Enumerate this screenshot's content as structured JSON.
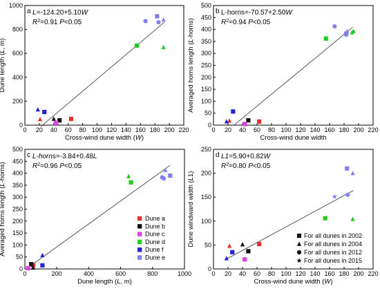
{
  "chart_data": [
    {
      "id": "a",
      "type": "scatter",
      "letter": "a",
      "xlabel": "Cross-wind dune width  (W)",
      "ylabel": "Dune length (L, m)",
      "xlim": [
        0,
        220
      ],
      "ylim": [
        0,
        1000
      ],
      "xticks": [
        "0",
        "20",
        "40",
        "60",
        "80",
        "100",
        "120",
        "140",
        "160",
        "180",
        "200",
        "220"
      ],
      "yticks": [
        "0",
        "200",
        "400",
        "600",
        "800",
        "1000"
      ],
      "x_tick_values": [
        0,
        20,
        40,
        60,
        80,
        100,
        120,
        140,
        160,
        180,
        200,
        220
      ],
      "y_tick_values": [
        0,
        200,
        400,
        600,
        800,
        1000
      ],
      "equation": "L=-124.20+5.10W",
      "stats": "R²=0.91 P<0.05",
      "fit": {
        "intercept": -124.2,
        "slope": 5.1,
        "x_range": [
          22,
          193
        ]
      },
      "points": [
        {
          "dune": "a",
          "year": "2002",
          "x": 64,
          "y": 52
        },
        {
          "dune": "a",
          "year": "2004",
          "x": 21,
          "y": 48
        },
        {
          "dune": "b",
          "year": "2002",
          "x": 48,
          "y": 40
        },
        {
          "dune": "b",
          "year": "2004",
          "x": 40,
          "y": 52
        },
        {
          "dune": "c",
          "year": "2002",
          "x": 43,
          "y": 18
        },
        {
          "dune": "c",
          "year": "2004",
          "x": 44,
          "y": 20
        },
        {
          "dune": "d",
          "year": "2002",
          "x": 155,
          "y": 665
        },
        {
          "dune": "d",
          "year": "2004",
          "x": 192,
          "y": 650
        },
        {
          "dune": "f",
          "year": "2002",
          "x": 27,
          "y": 110
        },
        {
          "dune": "f",
          "year": "2004",
          "x": 18,
          "y": 130
        },
        {
          "dune": "e",
          "year": "2012",
          "x": 167,
          "y": 870
        },
        {
          "dune": "e",
          "year": "2012",
          "x": 185,
          "y": 860
        },
        {
          "dune": "e",
          "year": "2002",
          "x": 183,
          "y": 910
        },
        {
          "dune": "e",
          "year": "2004",
          "x": 192,
          "y": 880
        }
      ]
    },
    {
      "id": "b",
      "type": "scatter",
      "letter": "b",
      "xlabel": "Cross-wind dune width",
      "ylabel": "Averaged horns length (L-horns)",
      "xlim": [
        0,
        220
      ],
      "ylim": [
        0,
        500
      ],
      "xticks": [
        "0",
        "20",
        "40",
        "60",
        "80",
        "100",
        "120",
        "140",
        "160",
        "180",
        "200",
        "220"
      ],
      "yticks": [
        "0",
        "50",
        "100",
        "150",
        "200",
        "250",
        "300",
        "350",
        "400",
        "450",
        "500"
      ],
      "x_tick_values": [
        0,
        20,
        40,
        60,
        80,
        100,
        120,
        140,
        160,
        180,
        200,
        220
      ],
      "y_tick_values": [
        0,
        50,
        100,
        150,
        200,
        250,
        300,
        350,
        400,
        450,
        500
      ],
      "equation": "L-horns=-70.57+2.50W",
      "stats": "R²=0.94 P<0.05",
      "fit": {
        "intercept": -70.57,
        "slope": 2.5,
        "x_range": [
          28,
          192
        ]
      },
      "points": [
        {
          "dune": "a",
          "year": "2002",
          "x": 63,
          "y": 15
        },
        {
          "dune": "a",
          "year": "2004",
          "x": 22,
          "y": 18
        },
        {
          "dune": "b",
          "year": "2002",
          "x": 48,
          "y": 20
        },
        {
          "dune": "c",
          "year": "2002",
          "x": 43,
          "y": 5
        },
        {
          "dune": "c",
          "year": "2004",
          "x": 44,
          "y": 3
        },
        {
          "dune": "d",
          "year": "2002",
          "x": 155,
          "y": 362
        },
        {
          "dune": "d",
          "year": "2004",
          "x": 191,
          "y": 387
        },
        {
          "dune": "d",
          "year": "2004",
          "x": 193,
          "y": 393
        },
        {
          "dune": "f",
          "year": "2002",
          "x": 27,
          "y": 57
        },
        {
          "dune": "f",
          "year": "2004",
          "x": 18,
          "y": 15
        },
        {
          "dune": "e",
          "year": "2012",
          "x": 167,
          "y": 413
        },
        {
          "dune": "e",
          "year": "2012",
          "x": 183,
          "y": 378
        },
        {
          "dune": "e",
          "year": "2002",
          "x": 183,
          "y": 383
        },
        {
          "dune": "e",
          "year": "2004",
          "x": 184,
          "y": 392
        }
      ]
    },
    {
      "id": "c",
      "type": "scatter",
      "letter": "c",
      "xlabel": "Dune length (L, m)",
      "ylabel": "Averaged horns length (L-horns)",
      "xlim": [
        0,
        1000
      ],
      "ylim": [
        0,
        500
      ],
      "xticks": [
        "0",
        "200",
        "400",
        "600",
        "800",
        "1000"
      ],
      "yticks": [
        "0",
        "50",
        "100",
        "150",
        "200",
        "250",
        "300",
        "350",
        "400",
        "450",
        "500"
      ],
      "x_tick_values": [
        0,
        200,
        400,
        600,
        800,
        1000
      ],
      "y_tick_values": [
        0,
        50,
        100,
        150,
        200,
        250,
        300,
        350,
        400,
        450,
        500
      ],
      "equation": "L-horns=-3.84+0.48L",
      "stats": "R²=0.96 P<0.05",
      "fit": {
        "intercept": -3.84,
        "slope": 0.48,
        "x_range": [
          10,
          910
        ]
      },
      "legend": {
        "position": "lower-right",
        "entries": [
          {
            "dune": "a",
            "label": "Dune a"
          },
          {
            "dune": "b",
            "label": "Dune b"
          },
          {
            "dune": "c",
            "label": "Dune c"
          },
          {
            "dune": "d",
            "label": "Dune d"
          },
          {
            "dune": "f",
            "label": "Dune f"
          },
          {
            "dune": "e",
            "label": "Dune e"
          }
        ]
      },
      "points": [
        {
          "dune": "a",
          "year": "2002",
          "x": 52,
          "y": 15
        },
        {
          "dune": "a",
          "year": "2004",
          "x": 48,
          "y": 18
        },
        {
          "dune": "b",
          "year": "2002",
          "x": 40,
          "y": 20
        },
        {
          "dune": "b",
          "year": "2004",
          "x": 52,
          "y": 5
        },
        {
          "dune": "c",
          "year": "2002",
          "x": 20,
          "y": 3
        },
        {
          "dune": "c",
          "year": "2004",
          "x": 18,
          "y": 5
        },
        {
          "dune": "d",
          "year": "2002",
          "x": 665,
          "y": 362
        },
        {
          "dune": "d",
          "year": "2004",
          "x": 650,
          "y": 387
        },
        {
          "dune": "f",
          "year": "2002",
          "x": 110,
          "y": 15
        },
        {
          "dune": "f",
          "year": "2004",
          "x": 110,
          "y": 57
        },
        {
          "dune": "e",
          "year": "2012",
          "x": 860,
          "y": 383
        },
        {
          "dune": "e",
          "year": "2012",
          "x": 870,
          "y": 378
        },
        {
          "dune": "e",
          "year": "2002",
          "x": 910,
          "y": 390
        },
        {
          "dune": "e",
          "year": "2004",
          "x": 880,
          "y": 413
        }
      ]
    },
    {
      "id": "d",
      "type": "scatter",
      "letter": "d",
      "xlabel": "Cross-wind dune width (W)",
      "ylabel": "Dune windward width (L1)",
      "xlim": [
        0,
        220
      ],
      "ylim": [
        0,
        250
      ],
      "xticks": [
        "0",
        "20",
        "40",
        "60",
        "80",
        "100",
        "120",
        "140",
        "160",
        "180",
        "200",
        "220"
      ],
      "yticks": [
        "0",
        "50",
        "100",
        "150",
        "200",
        "250"
      ],
      "x_tick_values": [
        0,
        20,
        40,
        60,
        80,
        100,
        120,
        140,
        160,
        180,
        200,
        220
      ],
      "y_tick_values": [
        0,
        50,
        100,
        150,
        200,
        250
      ],
      "equation": "L1=5.90+0.82W",
      "stats": "R²=0.80 P<0.05",
      "fit": {
        "intercept": 5.9,
        "slope": 0.82,
        "x_range": [
          18,
          193
        ]
      },
      "legend": {
        "position": "lower-right",
        "entries": [
          {
            "marker": "square",
            "label": "For all dunes in 2002"
          },
          {
            "marker": "triangle",
            "label": "For all dunes in 2004"
          },
          {
            "marker": "circle",
            "label": "For all dunes in 2012"
          },
          {
            "marker": "star",
            "label": "For all dunes in 2015"
          }
        ]
      },
      "points": [
        {
          "dune": "a",
          "year": "2002",
          "x": 63,
          "y": 52
        },
        {
          "dune": "a",
          "year": "2004",
          "x": 22,
          "y": 48
        },
        {
          "dune": "b",
          "year": "2002",
          "x": 48,
          "y": 37
        },
        {
          "dune": "b",
          "year": "2004",
          "x": 40,
          "y": 51
        },
        {
          "dune": "c",
          "year": "2002",
          "x": 43,
          "y": 20
        },
        {
          "dune": "d",
          "year": "2002",
          "x": 154,
          "y": 106
        },
        {
          "dune": "d",
          "year": "2004",
          "x": 192,
          "y": 104
        },
        {
          "dune": "f",
          "year": "2002",
          "x": 26,
          "y": 35
        },
        {
          "dune": "f",
          "year": "2004",
          "x": 18,
          "y": 22
        },
        {
          "dune": "e",
          "year": "2015",
          "x": 167,
          "y": 151
        },
        {
          "dune": "e",
          "year": "2012",
          "x": 185,
          "y": 155
        },
        {
          "dune": "e",
          "year": "2002",
          "x": 184,
          "y": 210
        },
        {
          "dune": "e",
          "year": "2004",
          "x": 192,
          "y": 200
        }
      ]
    }
  ],
  "colors": {
    "a": "#e53030",
    "b": "#111111",
    "c": "#e040e0",
    "d": "#22cc22",
    "e": "#8080ee",
    "f": "#2222dd",
    "fit_line": "#444444",
    "axis": "#000000"
  },
  "markers": {
    "2002": "square",
    "2004": "triangle",
    "2012": "circle",
    "2015": "star"
  }
}
